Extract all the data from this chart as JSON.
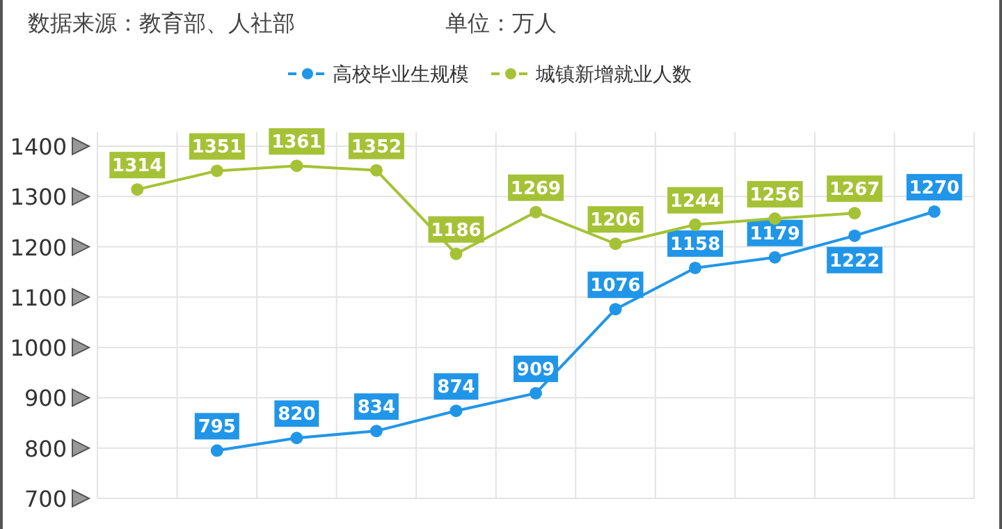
{
  "chart_data": {
    "type": "line",
    "annotations": [
      "数据来源：教育部、人社部",
      "单位：万人"
    ],
    "categories": [
      null,
      null,
      null,
      null,
      null,
      null,
      null,
      null,
      null,
      null,
      null
    ],
    "series": [
      {
        "name": "高校毕业生规模",
        "color": "#2196e8",
        "values": [
          null,
          795,
          820,
          834,
          874,
          909,
          1076,
          1158,
          1179,
          1222,
          1270
        ]
      },
      {
        "name": "城镇新增就业人数",
        "color": "#a5c236",
        "values": [
          1314,
          1351,
          1361,
          1352,
          1186,
          1269,
          1206,
          1244,
          1256,
          1267,
          null
        ]
      }
    ],
    "ylim": [
      700,
      1400
    ],
    "yticks": [
      700,
      800,
      900,
      1000,
      1100,
      1200,
      1300,
      1400
    ],
    "grid": true,
    "legend": "top",
    "marker": "circle",
    "data_labels": true
  }
}
